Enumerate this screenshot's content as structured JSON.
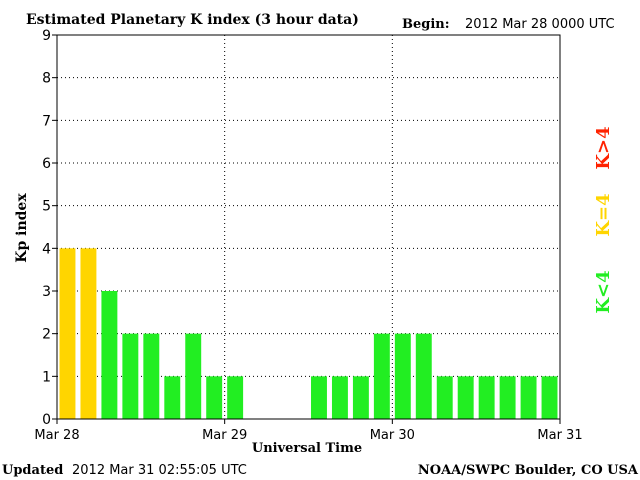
{
  "chart_data": {
    "type": "bar",
    "title": "Estimated Planetary K index (3 hour data)",
    "begin_label": "Begin:",
    "begin_value": "2012 Mar 28 0000 UTC",
    "xlabel": "Universal Time",
    "ylabel": "Kp index",
    "ylim": [
      0,
      9
    ],
    "yticks": [
      "0",
      "1",
      "2",
      "3",
      "4",
      "5",
      "6",
      "7",
      "8",
      "9"
    ],
    "x_day_labels": [
      "Mar 28",
      "Mar 29",
      "Mar 30",
      "Mar 31"
    ],
    "bars_per_day": 8,
    "values": [
      4,
      4,
      3,
      2,
      2,
      1,
      2,
      1,
      1,
      null,
      null,
      null,
      1,
      1,
      1,
      2,
      2,
      2,
      1,
      1,
      1,
      1,
      1,
      1
    ],
    "grid": true,
    "colors": {
      "below_4": "#22ee22",
      "equal_4": "#ffd500",
      "above_4": "#ff2200"
    },
    "legend": [
      {
        "label": "K<4",
        "color": "#22ee22"
      },
      {
        "label": "K=4",
        "color": "#ffd500"
      },
      {
        "label": "K>4",
        "color": "#ff2200"
      }
    ]
  },
  "footer": {
    "updated_label": "Updated",
    "updated_value": "2012 Mar 31 02:55:05 UTC",
    "source": "NOAA/SWPC Boulder, CO USA"
  }
}
